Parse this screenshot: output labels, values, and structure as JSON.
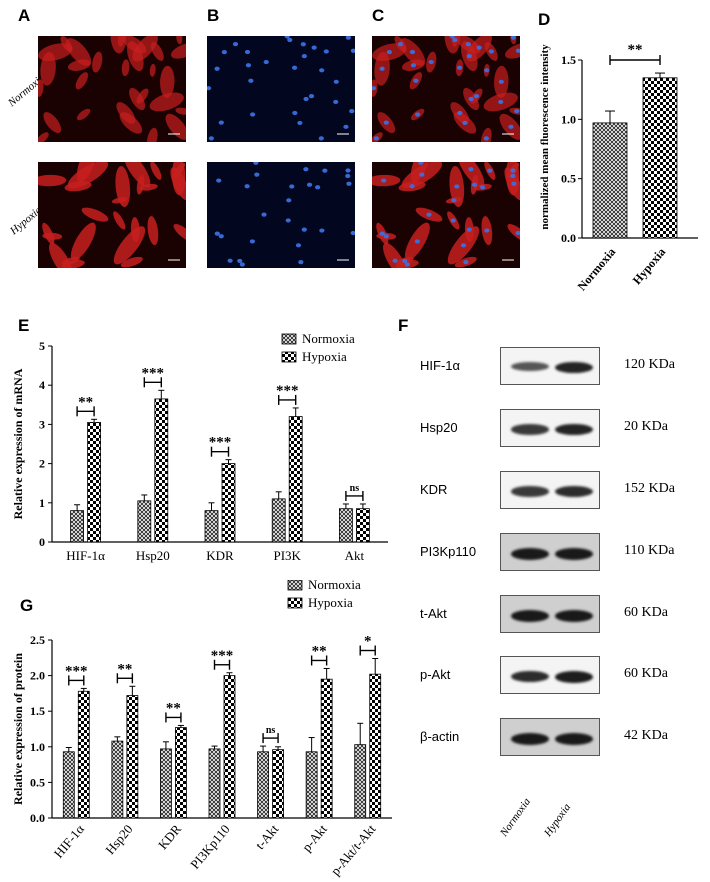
{
  "panel_letters": {
    "A": "A",
    "B": "B",
    "C": "C",
    "D": "D",
    "E": "E",
    "F": "F",
    "G": "G"
  },
  "micrograph_rows": [
    "Normoxia",
    "Hypoxia"
  ],
  "colors": {
    "phalloidin_bg": "#1a0202",
    "phalloidin_cell": "#c81e1e",
    "dapi_bg": "#02061e",
    "dapi_nucleus": "#3a6fe0",
    "bar_edge": "#000000"
  },
  "chart_data": [
    {
      "panel": "D",
      "type": "bar",
      "categories": [
        "Normoxia",
        "Hypoxia"
      ],
      "values": [
        0.97,
        1.35
      ],
      "errors": [
        0.1,
        0.04
      ],
      "patterns": [
        "diamond",
        "checker"
      ],
      "ylabel": "normalized mean fluorescence intensity",
      "ylim": [
        0,
        1.5
      ],
      "yticks": [
        "0.0",
        "0.5",
        "1.0",
        "1.5"
      ],
      "significance": [
        {
          "between": [
            0,
            1
          ],
          "label": "**"
        }
      ]
    },
    {
      "panel": "E",
      "type": "bar",
      "categories": [
        "HIF-1α",
        "Hsp20",
        "KDR",
        "PI3K",
        "Akt"
      ],
      "series": [
        {
          "name": "Normoxia",
          "pattern": "diamond",
          "values": [
            0.8,
            1.05,
            0.8,
            1.1,
            0.85
          ],
          "errors": [
            0.15,
            0.15,
            0.2,
            0.18,
            0.12
          ]
        },
        {
          "name": "Hypoxia",
          "pattern": "checker",
          "values": [
            3.05,
            3.65,
            2.0,
            3.2,
            0.85
          ],
          "errors": [
            0.08,
            0.22,
            0.1,
            0.22,
            0.12
          ]
        }
      ],
      "significance": [
        "**",
        "***",
        "***",
        "***",
        "ns"
      ],
      "ylabel": "Relative expression of mRNA",
      "ylim": [
        0,
        5
      ],
      "yticks": [
        "0",
        "1",
        "2",
        "3",
        "4",
        "5"
      ],
      "legend": "top-right"
    },
    {
      "panel": "G",
      "type": "bar",
      "categories": [
        "HIF-1α",
        "Hsp20",
        "KDR",
        "PI3Kp110",
        "t-Akt",
        "p-Akt",
        "p-Akt/t-Akt"
      ],
      "series": [
        {
          "name": "Normoxia",
          "pattern": "diamond",
          "values": [
            0.93,
            1.08,
            0.97,
            0.97,
            0.93,
            0.93,
            1.03
          ],
          "errors": [
            0.06,
            0.06,
            0.1,
            0.04,
            0.08,
            0.2,
            0.3
          ]
        },
        {
          "name": "Hypoxia",
          "pattern": "checker",
          "values": [
            1.78,
            1.72,
            1.27,
            2.0,
            0.96,
            1.95,
            2.02
          ],
          "errors": [
            0.04,
            0.13,
            0.03,
            0.04,
            0.04,
            0.15,
            0.22
          ]
        }
      ],
      "significance": [
        "***",
        "**",
        "**",
        "***",
        "ns",
        "**",
        "*"
      ],
      "ylabel": "Relative expression of protein",
      "ylim": [
        0,
        2.5
      ],
      "yticks": [
        "0.0",
        "0.5",
        "1.0",
        "1.5",
        "2.0",
        "2.5"
      ],
      "legend": "top-right"
    }
  ],
  "western_blot": {
    "lanes": [
      "Normoxia",
      "Hypoxia"
    ],
    "rows": [
      {
        "protein": "HIF-1α",
        "kda": "120 KDa",
        "bands": [
          0.55,
          0.9
        ],
        "dark_bg": false
      },
      {
        "protein": "Hsp20",
        "kda": "20 KDa",
        "bands": [
          0.75,
          0.9
        ],
        "dark_bg": false
      },
      {
        "protein": "KDR",
        "kda": "152 KDa",
        "bands": [
          0.75,
          0.85
        ],
        "dark_bg": false
      },
      {
        "protein": "PI3Kp110",
        "kda": "110 KDa",
        "bands": [
          0.95,
          0.95
        ],
        "dark_bg": true
      },
      {
        "protein": "t-Akt",
        "kda": "60 KDa",
        "bands": [
          0.95,
          0.95
        ],
        "dark_bg": true
      },
      {
        "protein": "p-Akt",
        "kda": "60 KDa",
        "bands": [
          0.85,
          0.95
        ],
        "dark_bg": false
      },
      {
        "protein": "β-actin",
        "kda": "42 KDa",
        "bands": [
          0.95,
          0.95
        ],
        "dark_bg": true
      }
    ]
  }
}
